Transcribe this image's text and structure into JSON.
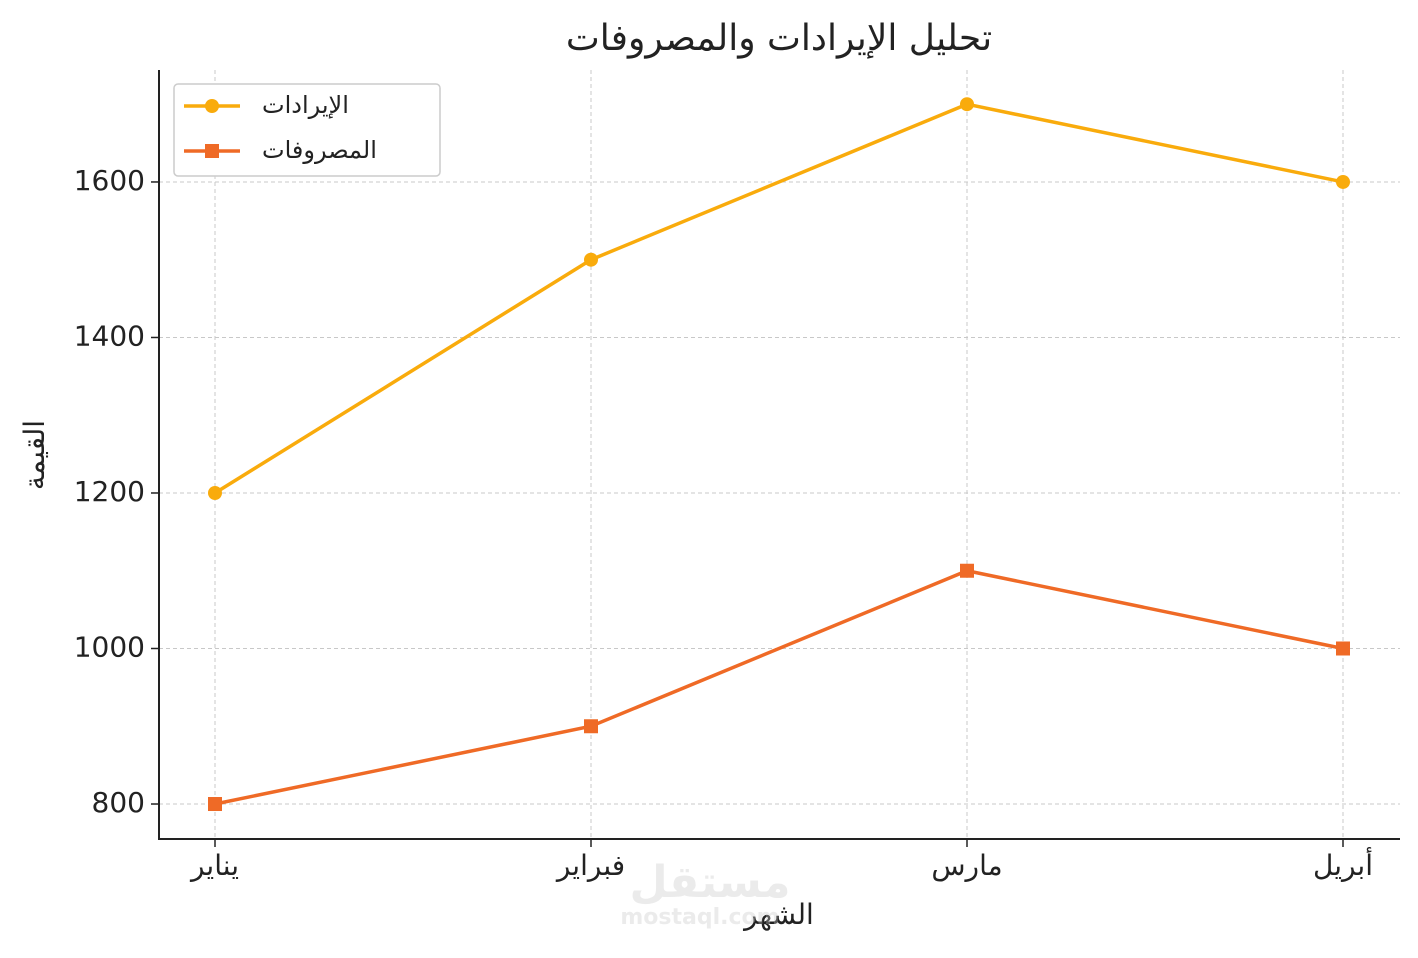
{
  "chart_data": {
    "type": "line",
    "title": "تحليل الإيرادات والمصروفات",
    "x_label": "الشهر",
    "y_label": "القيمة",
    "categories": [
      "يناير",
      "فبراير",
      "مارس",
      "أبريل"
    ],
    "series": [
      {
        "name": "الإيرادات",
        "color": "#f9ab0c",
        "marker": "circle",
        "values": [
          1200,
          1500,
          1700,
          1600
        ]
      },
      {
        "name": "المصروفات",
        "color": "#ef6a26",
        "marker": "square",
        "values": [
          800,
          900,
          1100,
          1000
        ]
      }
    ],
    "ylim": [
      755,
      1744
    ],
    "yticks": [
      800,
      1000,
      1200,
      1400,
      1600
    ],
    "grid": true,
    "legend": "upper left",
    "watermark": [
      "مستقل",
      "mostaql.com"
    ]
  }
}
